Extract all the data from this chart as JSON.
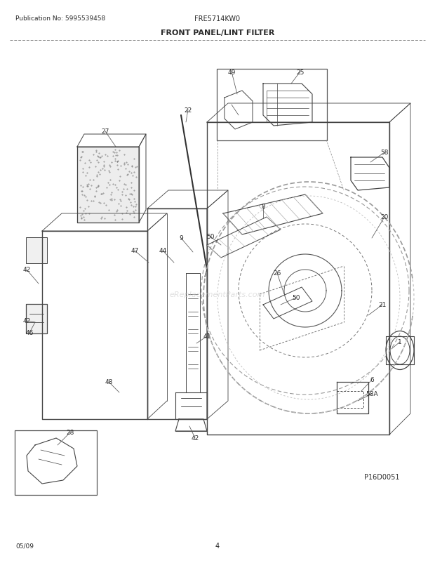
{
  "title": "FRONT PANEL/LINT FILTER",
  "model": "FRE5714KW0",
  "publication": "Publication No: 5995539458",
  "diagram_code": "P16D0051",
  "date": "05/09",
  "page": "4",
  "bg_color": "#ffffff",
  "text_color": "#2a2a2a",
  "line_color": "#444444",
  "label_fontsize": 6.5
}
